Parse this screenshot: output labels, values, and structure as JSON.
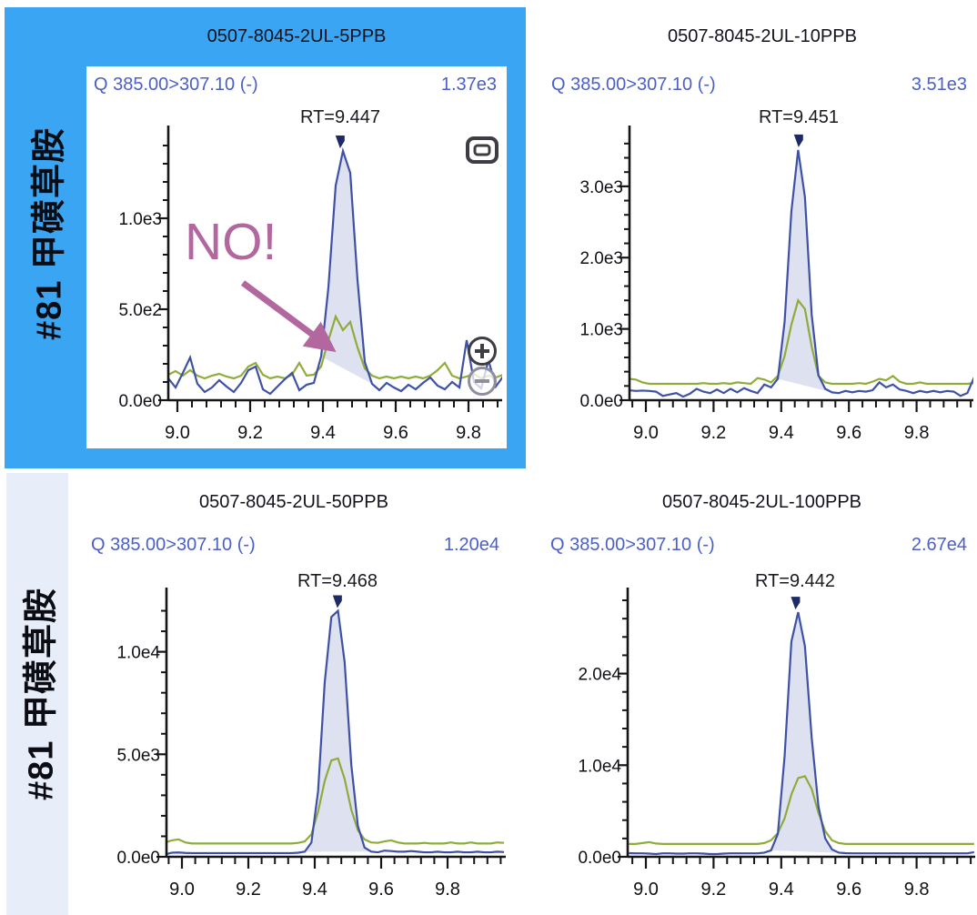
{
  "colors": {
    "selected_cell": "#3AA5F3",
    "row_label_bg": "#E8EEF9",
    "quantifier": "#3E51A6",
    "qualifier": "#8FAC3B",
    "peak_fill": "#DEE1F0",
    "header_text": "#4A5FC8",
    "tick_text": "#101016",
    "title_text": "#12121C",
    "annotation": "#B2679F",
    "marker": "#1C2A66",
    "axis": "#151515",
    "icon_gray": "#3D3D44",
    "icon_faded": "#8E8E9E"
  },
  "compound_rows": [
    {
      "label": "#81 甲磺草胺",
      "selected": true
    },
    {
      "label": "#81 甲磺草胺",
      "selected": false
    }
  ],
  "annotation": {
    "text": "NO!"
  },
  "chart_data": [
    {
      "type": "line",
      "sample_title": "0507-8045-2UL-5PPB",
      "transition": "Q 385.00>307.10 (-)",
      "max_intensity": "1.37e3",
      "rt_label": "RT=9.447",
      "rt": 9.447,
      "selected": true,
      "x_tick_labels": [
        "9.0",
        "9.2",
        "9.4",
        "9.6",
        "9.8"
      ],
      "x_tick_values": [
        9.0,
        9.2,
        9.4,
        9.6,
        9.8
      ],
      "x_minor_step": 0.04,
      "y_ticks": [
        {
          "value": 0,
          "label": "0.0e0"
        },
        {
          "value": 500,
          "label": "5.0e2"
        },
        {
          "value": 1000,
          "label": "1.0e3"
        }
      ],
      "y_minor_step": 100,
      "y_axis_max": 1450,
      "integration": [
        9.385,
        9.545
      ],
      "series": [
        {
          "name": "quantifier",
          "x0": 8.975,
          "dx": 0.02,
          "values": [
            120,
            70,
            150,
            235,
            90,
            45,
            70,
            110,
            75,
            45,
            95,
            165,
            185,
            60,
            35,
            75,
            115,
            150,
            55,
            85,
            95,
            240,
            620,
            1180,
            1370,
            1250,
            660,
            210,
            90,
            55,
            95,
            70,
            50,
            85,
            60,
            95,
            125,
            80,
            60,
            100,
            70,
            330,
            100,
            65,
            220,
            75,
            130
          ]
        },
        {
          "name": "qualifier",
          "x0": 8.975,
          "dx": 0.02,
          "values": [
            140,
            160,
            135,
            165,
            135,
            120,
            135,
            145,
            130,
            120,
            135,
            185,
            205,
            140,
            120,
            130,
            120,
            140,
            205,
            135,
            140,
            185,
            330,
            460,
            385,
            430,
            290,
            175,
            135,
            120,
            130,
            120,
            130,
            120,
            130,
            120,
            135,
            165,
            205,
            135,
            120,
            130,
            145,
            120,
            135,
            125,
            140
          ]
        }
      ]
    },
    {
      "type": "line",
      "sample_title": "0507-8045-2UL-10PPB",
      "transition": "Q 385.00>307.10 (-)",
      "max_intensity": "3.51e3",
      "rt_label": "RT=9.451",
      "rt": 9.451,
      "selected": false,
      "x_tick_labels": [
        "9.0",
        "9.2",
        "9.4",
        "9.6",
        "9.8"
      ],
      "x_tick_values": [
        9.0,
        9.2,
        9.4,
        9.6,
        9.8
      ],
      "x_minor_step": 0.04,
      "y_ticks": [
        {
          "value": 0,
          "label": "0.0e0"
        },
        {
          "value": 1000,
          "label": "1.0e3"
        },
        {
          "value": 2000,
          "label": "2.0e3"
        },
        {
          "value": 3000,
          "label": "3.0e3"
        }
      ],
      "y_minor_step": 200,
      "y_axis_max": 3700,
      "integration": [
        9.385,
        9.55
      ],
      "series": [
        {
          "name": "quantifier",
          "x0": 8.95,
          "dx": 0.02,
          "values": [
            140,
            130,
            135,
            130,
            120,
            60,
            80,
            100,
            50,
            90,
            160,
            120,
            100,
            150,
            100,
            160,
            110,
            170,
            130,
            100,
            220,
            180,
            300,
            1100,
            2650,
            3510,
            2850,
            1200,
            350,
            160,
            110,
            100,
            130,
            110,
            130,
            120,
            140,
            250,
            180,
            220,
            150,
            130,
            100,
            130,
            110,
            130,
            110,
            130,
            120,
            60,
            100,
            320
          ]
        },
        {
          "name": "qualifier",
          "x0": 8.95,
          "dx": 0.02,
          "values": [
            300,
            290,
            250,
            230,
            230,
            230,
            230,
            230,
            230,
            230,
            230,
            240,
            230,
            230,
            240,
            230,
            250,
            240,
            230,
            310,
            290,
            250,
            340,
            620,
            1060,
            1400,
            1280,
            750,
            340,
            250,
            230,
            230,
            230,
            230,
            240,
            230,
            260,
            300,
            280,
            340,
            260,
            230,
            230,
            250,
            230,
            230,
            230,
            230,
            230,
            230,
            230,
            240
          ]
        }
      ]
    },
    {
      "type": "line",
      "sample_title": "0507-8045-2UL-50PPB",
      "transition": "Q 385.00>307.10 (-)",
      "max_intensity": "1.20e4",
      "rt_label": "RT=9.468",
      "rt": 9.468,
      "selected": false,
      "x_tick_labels": [
        "9.0",
        "9.2",
        "9.4",
        "9.6",
        "9.8"
      ],
      "x_tick_values": [
        9.0,
        9.2,
        9.4,
        9.6,
        9.8
      ],
      "x_minor_step": 0.04,
      "y_ticks": [
        {
          "value": 0,
          "label": "0.0e0"
        },
        {
          "value": 5000,
          "label": "5.0e3"
        },
        {
          "value": 10000,
          "label": "1.0e4"
        }
      ],
      "y_minor_step": 1000,
      "y_axis_max": 12600,
      "integration": [
        9.365,
        9.585
      ],
      "series": [
        {
          "name": "quantifier",
          "x0": 8.95,
          "dx": 0.02,
          "values": [
            120,
            200,
            210,
            190,
            180,
            180,
            180,
            180,
            180,
            180,
            180,
            180,
            180,
            180,
            180,
            180,
            180,
            180,
            180,
            180,
            200,
            250,
            700,
            3200,
            8500,
            11700,
            12000,
            9500,
            4500,
            1500,
            450,
            250,
            220,
            300,
            280,
            250,
            250,
            280,
            250,
            220,
            220,
            250,
            220,
            220,
            250,
            220,
            220,
            250,
            220,
            220,
            250,
            230
          ]
        },
        {
          "name": "qualifier",
          "x0": 8.95,
          "dx": 0.02,
          "values": [
            700,
            800,
            850,
            700,
            650,
            650,
            650,
            650,
            650,
            650,
            650,
            650,
            650,
            650,
            650,
            650,
            650,
            650,
            650,
            650,
            680,
            750,
            1100,
            2200,
            3700,
            4700,
            4800,
            3800,
            2300,
            1300,
            850,
            700,
            680,
            750,
            800,
            700,
            650,
            650,
            650,
            680,
            650,
            650,
            650,
            700,
            650,
            650,
            700,
            650,
            650,
            650,
            700,
            680
          ]
        }
      ]
    },
    {
      "type": "line",
      "sample_title": "0507-8045-2UL-100PPB",
      "transition": "Q 385.00>307.10 (-)",
      "max_intensity": "2.67e4",
      "rt_label": "RT=9.442",
      "rt": 9.442,
      "selected": false,
      "x_tick_labels": [
        "9.0",
        "9.2",
        "9.4",
        "9.6",
        "9.8"
      ],
      "x_tick_values": [
        9.0,
        9.2,
        9.4,
        9.6,
        9.8
      ],
      "x_minor_step": 0.04,
      "y_ticks": [
        {
          "value": 0,
          "label": "0.0e0"
        },
        {
          "value": 10000,
          "label": "1.0e4"
        },
        {
          "value": 20000,
          "label": "2.0e4"
        }
      ],
      "y_minor_step": 2000,
      "y_axis_max": 28200,
      "integration": [
        9.355,
        9.59
      ],
      "series": [
        {
          "name": "quantifier",
          "x0": 8.95,
          "dx": 0.02,
          "values": [
            400,
            380,
            380,
            350,
            300,
            380,
            380,
            350,
            350,
            380,
            380,
            350,
            300,
            300,
            350,
            380,
            380,
            380,
            380,
            380,
            450,
            700,
            2500,
            11000,
            23500,
            26700,
            23000,
            13000,
            5500,
            2000,
            800,
            450,
            400,
            380,
            380,
            380,
            380,
            380,
            380,
            380,
            380,
            380,
            380,
            380,
            380,
            380,
            380,
            380,
            380,
            380,
            380,
            500
          ]
        },
        {
          "name": "qualifier",
          "x0": 8.95,
          "dx": 0.02,
          "values": [
            1400,
            1400,
            1500,
            1600,
            1450,
            1400,
            1400,
            1400,
            1400,
            1400,
            1400,
            1400,
            1400,
            1400,
            1400,
            1400,
            1400,
            1400,
            1400,
            1400,
            1500,
            1800,
            2600,
            4200,
            6800,
            8600,
            8800,
            7400,
            4800,
            2800,
            1800,
            1500,
            1400,
            1400,
            1400,
            1400,
            1400,
            1400,
            1400,
            1400,
            1400,
            1400,
            1400,
            1400,
            1400,
            1400,
            1400,
            1400,
            1400,
            1400,
            1400,
            1400
          ]
        }
      ]
    }
  ]
}
